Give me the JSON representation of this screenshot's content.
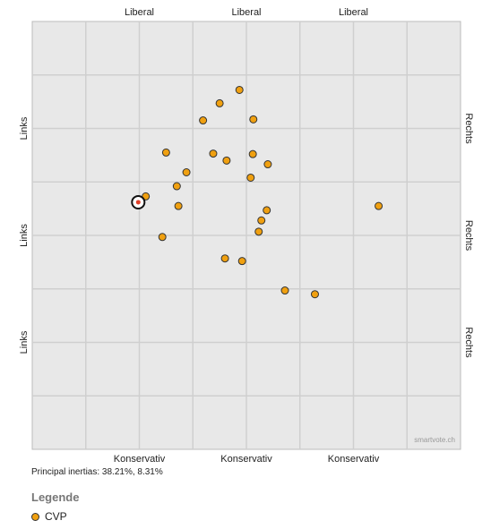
{
  "chart_data": {
    "type": "scatter",
    "top_labels": [
      "Liberal",
      "Liberal",
      "Liberal"
    ],
    "bottom_labels": [
      "Konservativ",
      "Konservativ",
      "Konservativ"
    ],
    "left_labels": [
      "Links",
      "Links",
      "Links"
    ],
    "right_labels": [
      "Rechts",
      "Rechts",
      "Rechts"
    ],
    "xlim": [
      0,
      8
    ],
    "ylim": [
      0,
      8
    ],
    "grid": true,
    "series": [
      {
        "name": "CVP",
        "color": "#f0a010",
        "points": [
          {
            "x": 3.87,
            "y": 6.72
          },
          {
            "x": 3.5,
            "y": 6.47
          },
          {
            "x": 3.19,
            "y": 6.15
          },
          {
            "x": 4.13,
            "y": 6.17
          },
          {
            "x": 2.5,
            "y": 5.55
          },
          {
            "x": 3.38,
            "y": 5.53
          },
          {
            "x": 3.63,
            "y": 5.4
          },
          {
            "x": 4.12,
            "y": 5.52
          },
          {
            "x": 4.4,
            "y": 5.33
          },
          {
            "x": 2.88,
            "y": 5.18
          },
          {
            "x": 4.08,
            "y": 5.08
          },
          {
            "x": 2.7,
            "y": 4.92
          },
          {
            "x": 2.12,
            "y": 4.73
          },
          {
            "x": 2.73,
            "y": 4.55
          },
          {
            "x": 4.38,
            "y": 4.47
          },
          {
            "x": 6.47,
            "y": 4.55
          },
          {
            "x": 4.28,
            "y": 4.28
          },
          {
            "x": 4.23,
            "y": 4.07
          },
          {
            "x": 2.43,
            "y": 3.97
          },
          {
            "x": 3.6,
            "y": 3.57
          },
          {
            "x": 3.92,
            "y": 3.52
          },
          {
            "x": 4.72,
            "y": 2.97
          },
          {
            "x": 5.28,
            "y": 2.9
          }
        ]
      }
    ],
    "highlight": {
      "x": 1.98,
      "y": 4.62,
      "marker_color": "#e0402a"
    },
    "watermark": "smartvote.ch",
    "note": "Principal inertias: 38.21%, 8.31%"
  },
  "legend": {
    "title": "Legende",
    "items": [
      {
        "label": "CVP",
        "color": "#f0a010"
      }
    ]
  }
}
